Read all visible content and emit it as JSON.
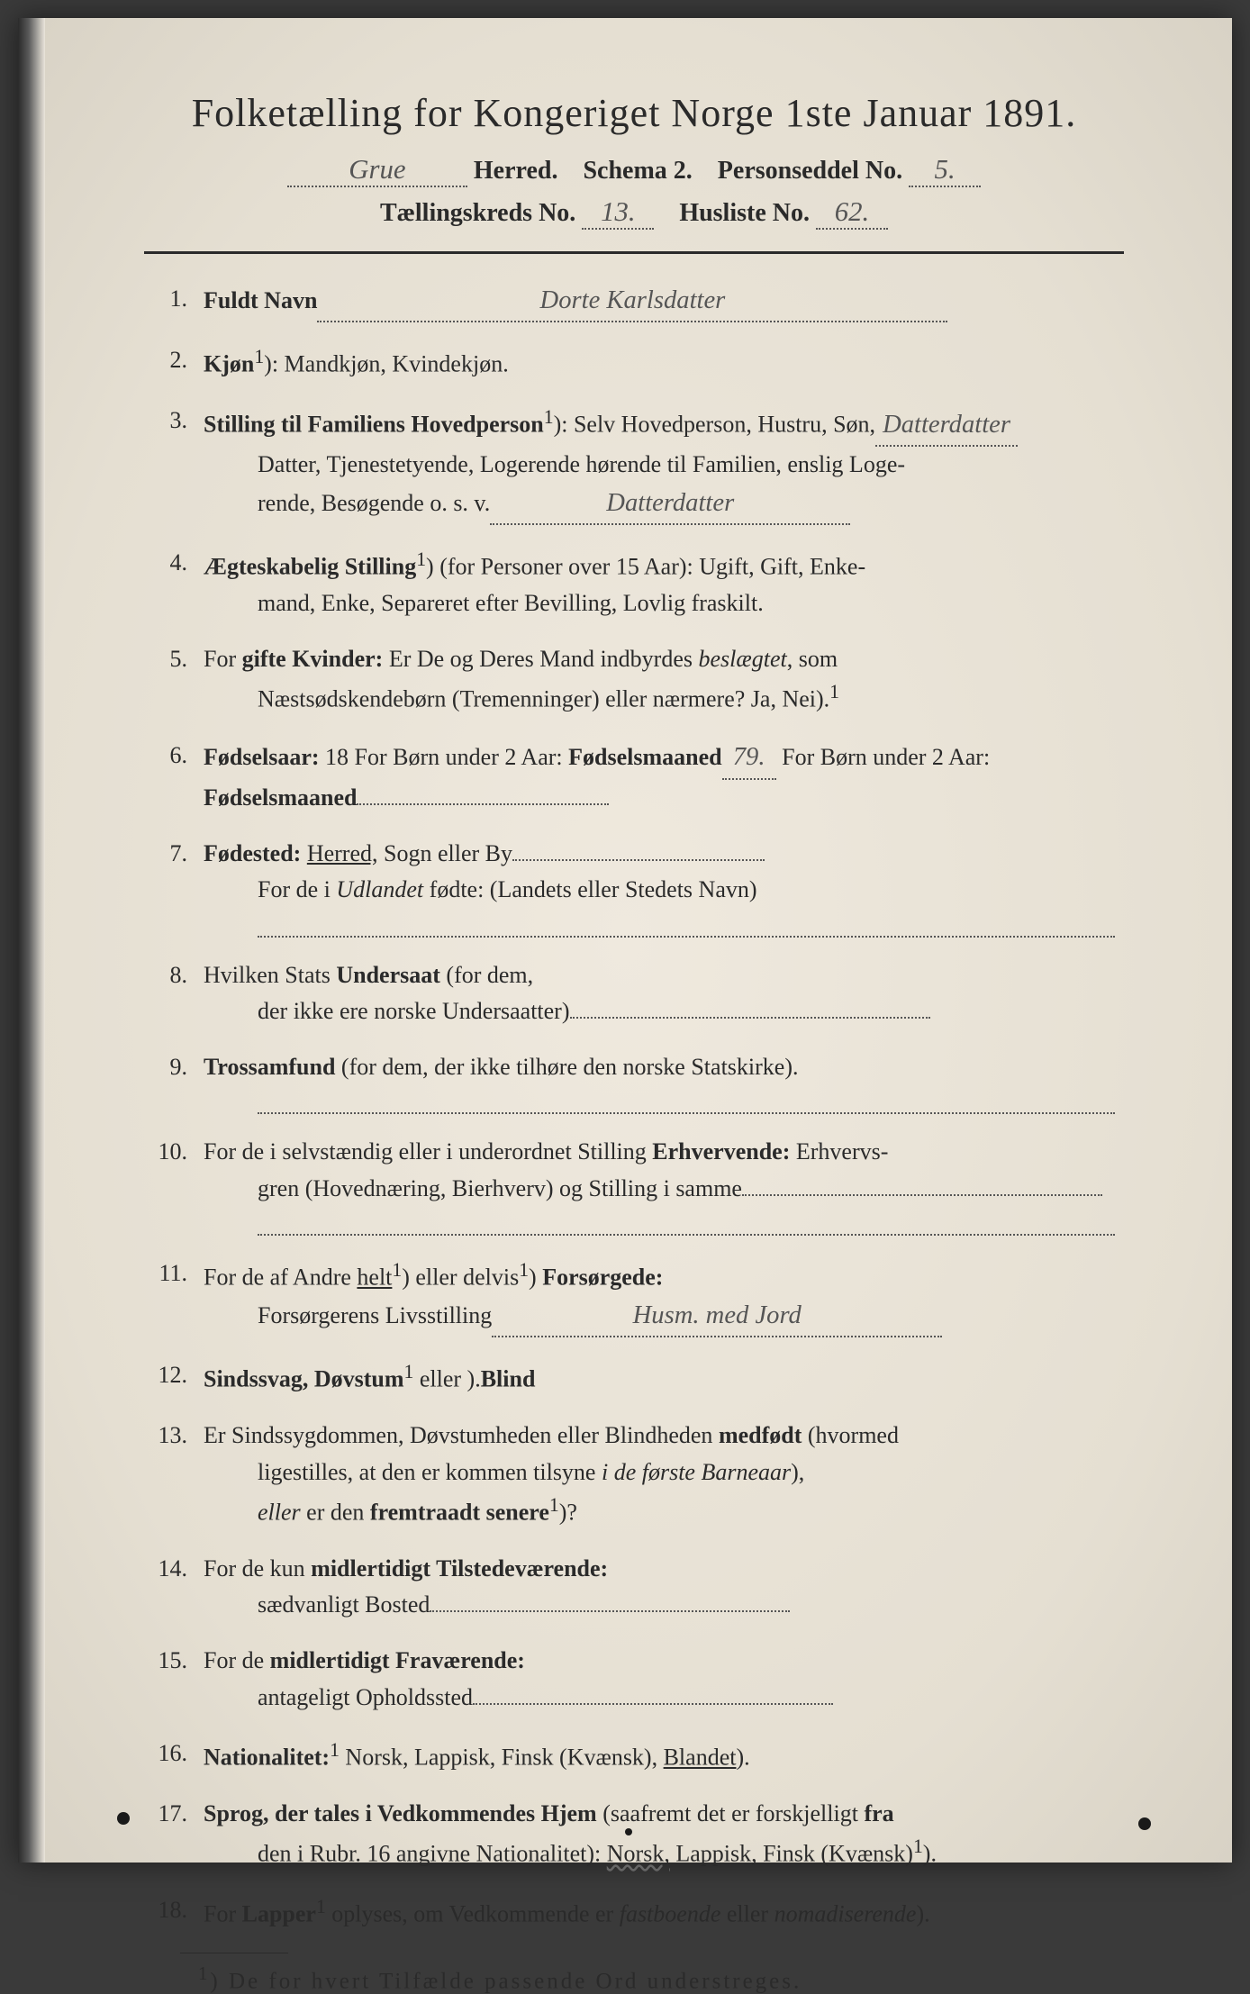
{
  "header": {
    "title": "Folketælling for Kongeriget Norge 1ste Januar 1891.",
    "herred_hw": "Grue",
    "herred_label": "Herred.",
    "schema_label": "Schema 2.",
    "personseddel_label": "Personseddel No.",
    "personseddel_no": "5.",
    "kreds_label": "Tællingskreds No.",
    "kreds_no": "13.",
    "husliste_label": "Husliste No.",
    "husliste_no": "62."
  },
  "items": [
    {
      "num": "1.",
      "label": "Fuldt Navn",
      "hw": "Dorte Karlsdatter"
    },
    {
      "num": "2.",
      "label": "Kjøn",
      "sup": "1",
      "rest": "): Mandkjøn, Kvindekjøn."
    },
    {
      "num": "3.",
      "label": "Stilling til Familiens Hovedperson",
      "sup": "1",
      "rest": "): Selv Hovedperson, Hustru, Søn,",
      "cont1": "Datter, Tjenestetyende, Logerende hørende til Familien, enslig Loge-",
      "cont2": "rende, Besøgende o. s. v.",
      "hw": "Datterdatter"
    },
    {
      "num": "4.",
      "label": "Ægteskabelig Stilling",
      "sup": "1",
      "rest": ") (for Personer over 15 Aar): Ugift, Gift, Enke-",
      "cont1": "mand, Enke, Separeret efter Bevilling, Lovlig fraskilt."
    },
    {
      "num": "5.",
      "pre": "For ",
      "label": "gifte Kvinder:",
      "rest": " Er De og Deres Mand indbyrdes ",
      "italic": "beslægtet",
      "rest2": ", som",
      "cont1": "Næstsødskendebørn (Tremenninger) eller nærmere?  Ja, Nei",
      "contsup": "1",
      "cont1b": ")."
    },
    {
      "num": "6.",
      "label": "Fødselsaar:",
      "rest": " 18",
      "hw": "79.",
      "rest2": "  For Børn under 2 Aar: ",
      "label2": "Fødselsmaaned",
      "trail_dots": true
    },
    {
      "num": "7.",
      "label": "Fødested:",
      "rest": " ",
      "u": "Herred,",
      "rest2": " Sogn eller By",
      "trail_dots": true,
      "cont1a": "For de i ",
      "cont1i": "Udlandet",
      "cont1b": " fødte: (Landets eller Stedets Navn)",
      "full_dots": true
    },
    {
      "num": "8.",
      "pre": "Hvilken Stats ",
      "label": "Undersaat",
      "rest": " (for dem,",
      "cont1": "der ikke ere norske Undersaatter)",
      "cont_dots": true
    },
    {
      "num": "9.",
      "label": "Trossamfund",
      "rest": " (for dem, der ikke tilhøre den norske Statskirke).",
      "full_dots": true
    },
    {
      "num": "10.",
      "pre": "For de i selvstændig eller i underordnet Stilling ",
      "label": "Erhvervende:",
      "rest": " Erhvervs-",
      "cont1": "gren (Hovednæring, Bierhverv) og Stilling i samme",
      "cont_dots": true,
      "full_dots": true
    },
    {
      "num": "11.",
      "pre": "For de af Andre ",
      "u": "helt",
      "sup": "1",
      "rest": ") eller delvis",
      "sup2": "1",
      "rest2": ") ",
      "label": "Forsørgede:",
      "cont1": "Forsørgerens Livsstilling",
      "hw_cont": "Husm. med Jord"
    },
    {
      "num": "12.",
      "label": "Sindssvag, Døvstum",
      "rest": " eller ",
      "label2": "Blind",
      "sup": "1",
      "rest2": ")."
    },
    {
      "num": "13.",
      "pre": "Er Sindssygdommen, Døvstumheden eller Blindheden ",
      "label": "medfødt",
      "rest": " (hvormed",
      "cont1a": "ligestilles, at den er kommen tilsyne ",
      "cont1i": "i de første Barneaar",
      "cont1b": "),",
      "cont2i": "eller",
      "cont2": " er den ",
      "cont2b": "fremtraadt senere",
      "cont2sup": "1",
      "cont2c": ")?"
    },
    {
      "num": "14.",
      "pre": "For de kun ",
      "label": "midlertidigt Tilstedeværende:",
      "cont1": "sædvanligt Bosted",
      "cont_dots": true
    },
    {
      "num": "15.",
      "pre": "For de ",
      "label": "midlertidigt Fraværende:",
      "cont1": "antageligt Opholdssted",
      "cont_dots": true
    },
    {
      "num": "16.",
      "label": "Nationalitet:",
      "rest": " Norsk, Lappisk, Finsk (Kvænsk), ",
      "u": "Blandet",
      "sup": "1",
      "rest2": ")."
    },
    {
      "num": "17.",
      "label": "Sprog, der tales i Vedkommendes Hjem",
      "rest": " (saafremt det er forskjelligt ",
      "label2": "fra",
      "cont1": "den i Rubr. 16 angivne Nationalitet): ",
      "cont1u": "Norsk,",
      "cont1b": " Lappisk, Finsk (Kvænsk)",
      "contsup": "1",
      "cont1c": ")."
    },
    {
      "num": "18.",
      "pre": "For ",
      "label": "Lapper",
      "rest": " oplyses, om Vedkommende er ",
      "italic": "fastboende",
      "rest2": " eller ",
      "italic2": "nomadiserende",
      "sup": "1",
      "rest3": ")."
    }
  ],
  "footnote": {
    "marker": "1",
    "text": ") De for hvert Tilfælde passende Ord understreges."
  }
}
